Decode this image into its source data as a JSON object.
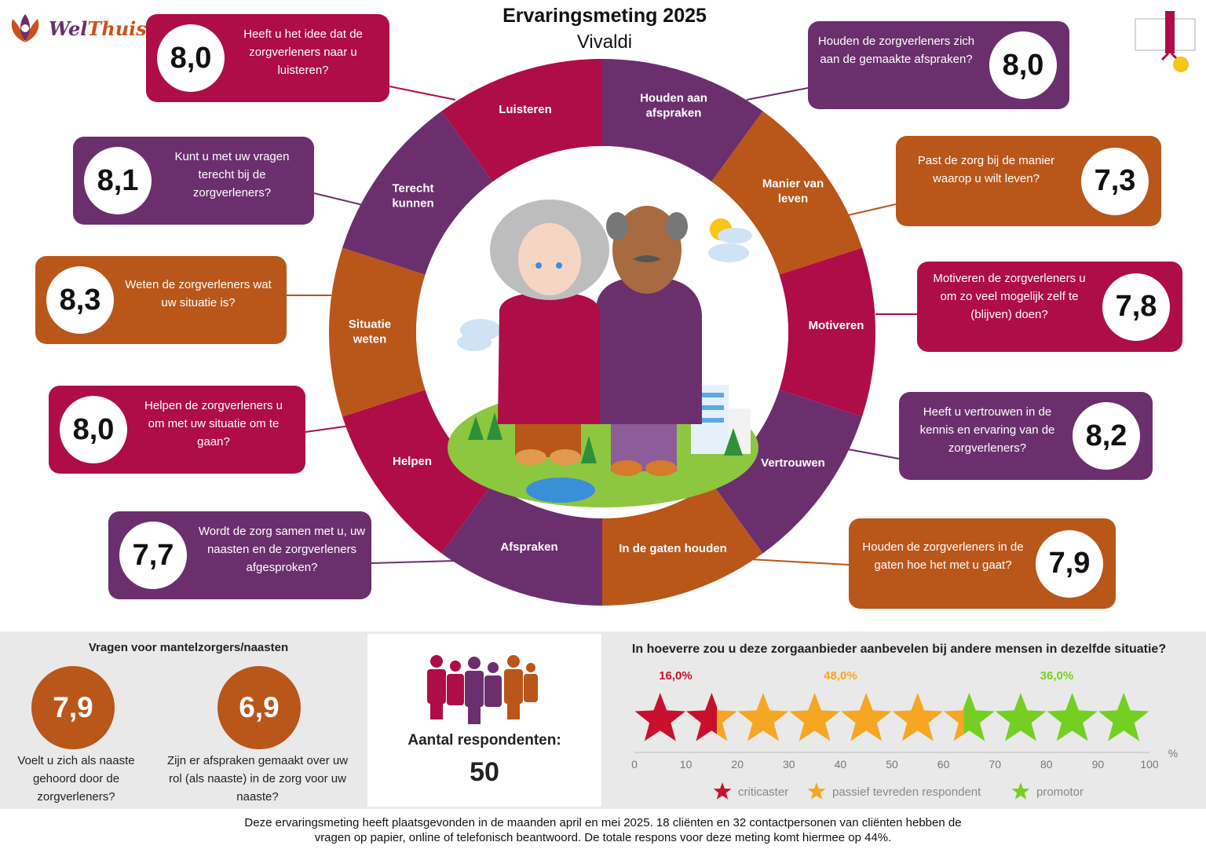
{
  "header": {
    "title": "Ervaringsmeting 2025",
    "subtitle": "Vivaldi"
  },
  "logo": {
    "part1": "Wel",
    "part2": "Thuis"
  },
  "colors": {
    "red": "#ae0d47",
    "purple": "#6b2f6e",
    "orange": "#b9561a",
    "green": "#74cf22",
    "gold": "#f5a623"
  },
  "segments": [
    {
      "label": "Luisteren",
      "color": "red"
    },
    {
      "label": "Houden aan afspraken",
      "color": "purple"
    },
    {
      "label": "Manier van leven",
      "color": "orange"
    },
    {
      "label": "Motiveren",
      "color": "red"
    },
    {
      "label": "Vertrouwen",
      "color": "purple"
    },
    {
      "label": "In de gaten houden",
      "color": "orange"
    },
    {
      "label": "Afspraken",
      "color": "purple"
    },
    {
      "label": "Helpen",
      "color": "red"
    },
    {
      "label": "Situatie weten",
      "color": "orange"
    },
    {
      "label": "Terecht kunnen",
      "color": "purple"
    }
  ],
  "cards": [
    {
      "question": "Heeft u het idee dat de zorgverleners naar u luisteren?",
      "score": "8,0",
      "color": "red"
    },
    {
      "question": "Kunt u met uw vragen terecht bij de zorgverleners?",
      "score": "8,1",
      "color": "purple"
    },
    {
      "question": "Weten de zorgverleners wat uw situatie is?",
      "score": "8,3",
      "color": "orange"
    },
    {
      "question": "Helpen de zorgverleners u om met uw situatie om te gaan?",
      "score": "8,0",
      "color": "red"
    },
    {
      "question": "Wordt de zorg samen met u, uw naasten en de zorgverleners afgesproken?",
      "score": "7,7",
      "color": "purple"
    },
    {
      "question": "Houden de zorgverleners zich aan de gemaakte afspraken?",
      "score": "8,0",
      "color": "purple"
    },
    {
      "question": "Past de zorg bij de manier waarop u wilt leven?",
      "score": "7,3",
      "color": "orange"
    },
    {
      "question": "Motiveren de zorgverleners u om zo veel mogelijk zelf te (blijven) doen?",
      "score": "7,8",
      "color": "red"
    },
    {
      "question": "Heeft u vertrouwen in de kennis en ervaring van de zorgverleners?",
      "score": "8,2",
      "color": "purple"
    },
    {
      "question": "Houden de zorgverleners in de gaten hoe het met u gaat?",
      "score": "7,9",
      "color": "orange"
    }
  ],
  "mantelzorg": {
    "heading": "Vragen voor mantelzorgers/naasten",
    "items": [
      {
        "score": "7,9",
        "question": "Voelt u zich als naaste gehoord door de zorgverleners?"
      },
      {
        "score": "6,9",
        "question": "Zijn er afspraken gemaakt over uw rol (als naaste) in de zorg voor uw naaste?"
      }
    ]
  },
  "respondents": {
    "label": "Aantal respondenten:",
    "count": "50"
  },
  "recommend": {
    "question": "In hoeverre zou u deze zorgaanbieder aanbevelen bij andere mensen in dezelfde situatie?"
  },
  "chart_data": {
    "type": "bar",
    "orientation": "horizontal-stacked",
    "categories": [
      "criticaster",
      "passief tevreden respondent",
      "promotor"
    ],
    "values": [
      16.0,
      48.0,
      36.0
    ],
    "labels": [
      "16,0%",
      "48,0%",
      "36,0%"
    ],
    "colors": [
      "#c8102e",
      "#f5a623",
      "#74cf22"
    ],
    "xlim": [
      0,
      100
    ],
    "xticks": [
      0,
      10,
      20,
      30,
      40,
      50,
      60,
      70,
      80,
      90,
      100
    ],
    "unit": "%",
    "stars": 10,
    "legend_position": "bottom"
  },
  "footer": {
    "line1": "Deze ervaringsmeting heeft plaatsgevonden in de maanden april en mei 2025. 18 cliënten en 32 contactpersonen van cliënten hebben de",
    "line2": "vragen op papier, online of telefonisch beantwoord. De totale respons voor deze meting komt hiermee op 44%."
  }
}
